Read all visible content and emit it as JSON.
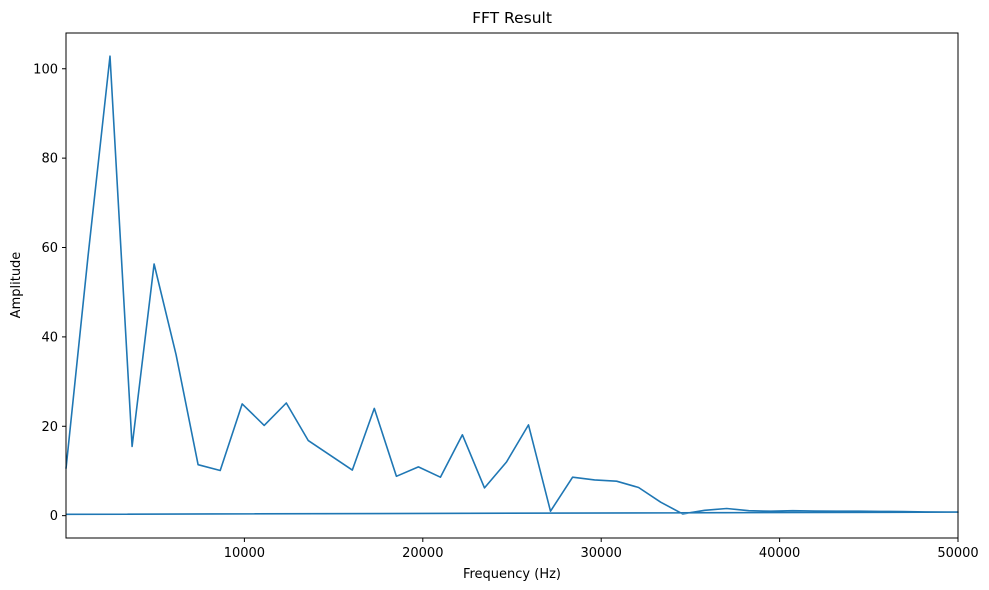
{
  "chart_data": {
    "type": "line",
    "title": "FFT Result",
    "xlabel": "Frequency (Hz)",
    "ylabel": "Amplitude",
    "xlim": [
      0,
      50000
    ],
    "ylim": [
      -5,
      108
    ],
    "xticks": [
      10000,
      20000,
      30000,
      40000,
      50000
    ],
    "yticks": [
      0,
      20,
      40,
      60,
      80,
      100
    ],
    "xtick_labels": [
      "10000",
      "20000",
      "30000",
      "40000",
      "50000"
    ],
    "ytick_labels": [
      "0",
      "20",
      "40",
      "60",
      "80",
      "100"
    ],
    "grid": false,
    "series": [
      {
        "color": "#1f77b4",
        "x": [
          0,
          1235,
          2469,
          3704,
          4938,
          6173,
          7407,
          8642,
          9877,
          11111,
          12346,
          13580,
          14815,
          16049,
          17284,
          18519,
          19753,
          20988,
          22222,
          23457,
          24691,
          25926,
          27160,
          28395,
          29630,
          30864,
          32099,
          33333,
          34568,
          35802,
          37037,
          38272,
          39506,
          40741,
          41975,
          43210,
          44444,
          45679,
          46914,
          48148,
          49383,
          50000,
          0
        ],
        "values": [
          10.5,
          58,
          102.8,
          15.5,
          56.3,
          36,
          11.4,
          10.1,
          25,
          20.2,
          25.2,
          16.8,
          13.5,
          10.2,
          24,
          8.8,
          10.9,
          8.6,
          18.1,
          6.2,
          12,
          20.3,
          1,
          8.6,
          8,
          7.7,
          6.3,
          3,
          0.4,
          1.2,
          1.6,
          1.1,
          1,
          1.1,
          1.05,
          1.0,
          1.0,
          0.95,
          0.9,
          0.85,
          0.8,
          0.8,
          0.3
        ]
      }
    ]
  }
}
